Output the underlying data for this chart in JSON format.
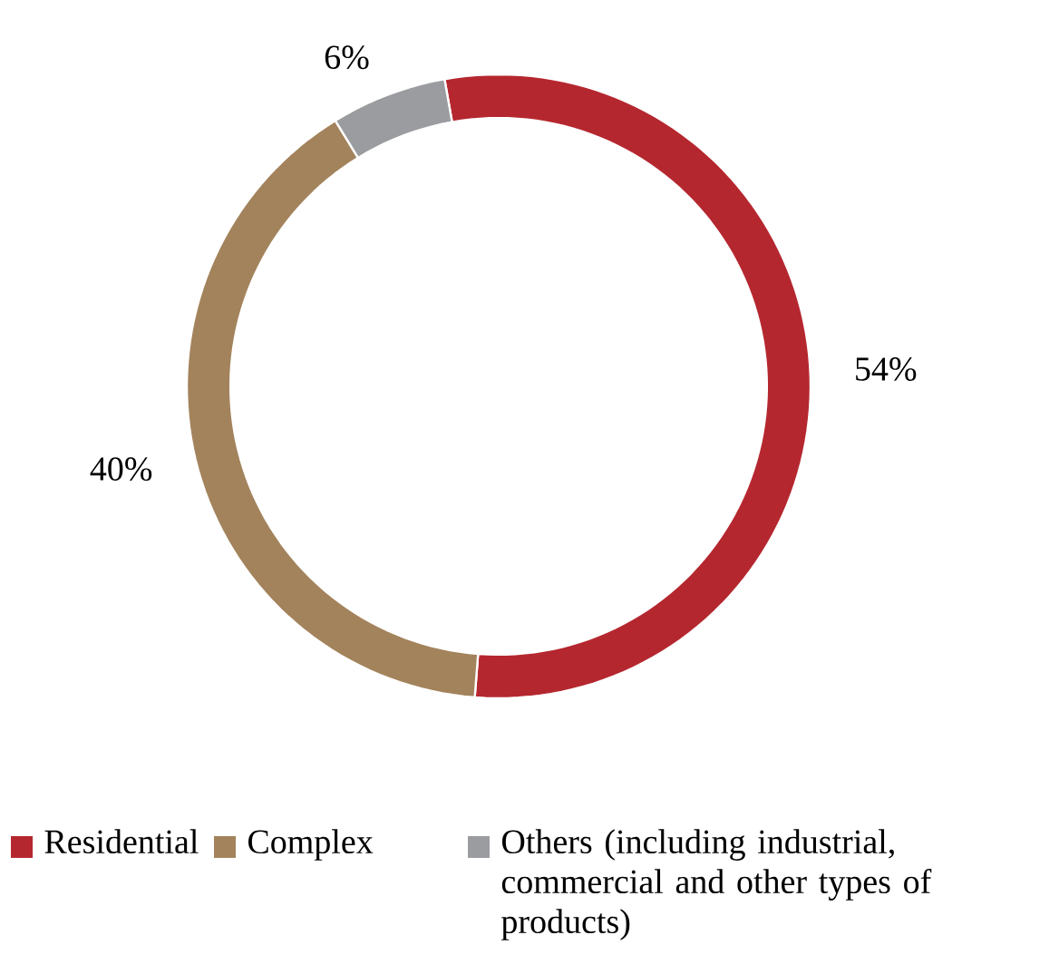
{
  "chart_data": {
    "type": "donut",
    "categories": [
      "Residential",
      "Complex",
      "Others (including industrial, commercial and other types of products)"
    ],
    "values": [
      54,
      40,
      6
    ],
    "colors": [
      "#b5272f",
      "#a3835c",
      "#9b9ca0"
    ],
    "value_labels": [
      "54%",
      "40%",
      "6%"
    ],
    "legend": "bottom"
  }
}
